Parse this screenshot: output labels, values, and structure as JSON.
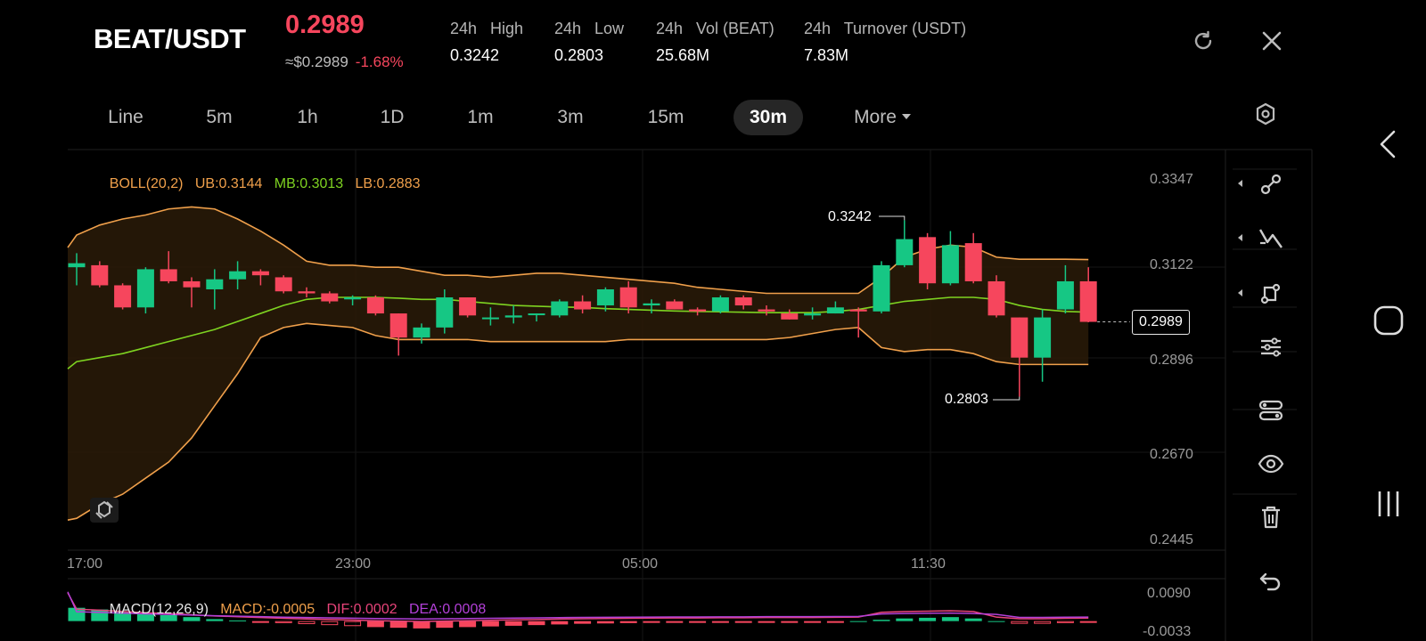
{
  "header": {
    "pair": "BEAT/USDT",
    "price": "0.2989",
    "price_usd": "≈$0.2989",
    "change": "-1.68%",
    "stats": [
      {
        "label": "24h   High",
        "value": "0.3242"
      },
      {
        "label": "24h   Low",
        "value": "0.2803"
      },
      {
        "label": "24h   Vol (BEAT)",
        "value": "25.68M"
      },
      {
        "label": "24h   Turnover (USDT)",
        "value": "7.83M"
      }
    ]
  },
  "tabs": [
    {
      "label": "Line",
      "active": false
    },
    {
      "label": "5m",
      "active": false
    },
    {
      "label": "1h",
      "active": false
    },
    {
      "label": "1D",
      "active": false
    },
    {
      "label": "1m",
      "active": false
    },
    {
      "label": "3m",
      "active": false
    },
    {
      "label": "15m",
      "active": false
    },
    {
      "label": "30m",
      "active": true
    },
    {
      "label": "More",
      "active": false
    }
  ],
  "boll_legend": {
    "name": "BOLL(20,2)",
    "ub": "UB:0.3144",
    "mb": "MB:0.3013",
    "lb": "LB:0.2883"
  },
  "macd_legend": {
    "name": "MACD(12,26,9)",
    "macd": "MACD:-0.0005",
    "dif": "DIF:0.0002",
    "dea": "DEA:0.0008"
  },
  "axis": {
    "price_ticks": [
      "0.3347",
      "0.3122",
      "0.2896",
      "0.2670",
      "0.2445"
    ],
    "time_ticks": [
      "17:00",
      "23:00",
      "05:00",
      "11:30"
    ],
    "macd_ticks": [
      "0.0090",
      "-0.0033"
    ]
  },
  "annotations": {
    "high_label": "0.3242",
    "low_label": "0.2803",
    "last_price_tag": "0.2989"
  },
  "colors": {
    "up": "#16c784",
    "down": "#f6465d",
    "ub": "#f0a04b",
    "mb": "#7ed321",
    "lb": "#f0a04b",
    "dif": "#e8447a",
    "dea": "#b340d8"
  },
  "icons": [
    "refresh-icon",
    "close-icon",
    "chart-settings-icon",
    "line-tool-icon",
    "trend-tool-icon",
    "shape-tool-icon",
    "indicator-settings-icon",
    "indicator-adjust-icon",
    "visibility-icon",
    "delete-icon",
    "undo-icon"
  ],
  "chart_data": {
    "type": "candlestick",
    "ylim": [
      0.2445,
      0.3347
    ],
    "candles": [
      {
        "o": 0.3125,
        "h": 0.316,
        "l": 0.308,
        "c": 0.3135
      },
      {
        "o": 0.313,
        "h": 0.314,
        "l": 0.3075,
        "c": 0.308
      },
      {
        "o": 0.308,
        "h": 0.3085,
        "l": 0.302,
        "c": 0.3025
      },
      {
        "o": 0.3025,
        "h": 0.3125,
        "l": 0.301,
        "c": 0.312
      },
      {
        "o": 0.312,
        "h": 0.3165,
        "l": 0.3085,
        "c": 0.309
      },
      {
        "o": 0.309,
        "h": 0.31,
        "l": 0.3025,
        "c": 0.3075
      },
      {
        "o": 0.307,
        "h": 0.312,
        "l": 0.302,
        "c": 0.3095
      },
      {
        "o": 0.3095,
        "h": 0.314,
        "l": 0.307,
        "c": 0.3115
      },
      {
        "o": 0.3115,
        "h": 0.312,
        "l": 0.308,
        "c": 0.3105
      },
      {
        "o": 0.31,
        "h": 0.3105,
        "l": 0.306,
        "c": 0.3065
      },
      {
        "o": 0.3065,
        "h": 0.3075,
        "l": 0.305,
        "c": 0.306
      },
      {
        "o": 0.306,
        "h": 0.3065,
        "l": 0.3035,
        "c": 0.304
      },
      {
        "o": 0.3045,
        "h": 0.3055,
        "l": 0.303,
        "c": 0.305
      },
      {
        "o": 0.305,
        "h": 0.3055,
        "l": 0.3005,
        "c": 0.301
      },
      {
        "o": 0.301,
        "h": 0.301,
        "l": 0.2905,
        "c": 0.295
      },
      {
        "o": 0.295,
        "h": 0.2985,
        "l": 0.2935,
        "c": 0.2975
      },
      {
        "o": 0.2975,
        "h": 0.307,
        "l": 0.296,
        "c": 0.305
      },
      {
        "o": 0.305,
        "h": 0.305,
        "l": 0.3,
        "c": 0.3005
      },
      {
        "o": 0.3,
        "h": 0.3025,
        "l": 0.298,
        "c": 0.3
      },
      {
        "o": 0.3,
        "h": 0.303,
        "l": 0.2985,
        "c": 0.3005
      },
      {
        "o": 0.301,
        "h": 0.301,
        "l": 0.299,
        "c": 0.301
      },
      {
        "o": 0.3005,
        "h": 0.3045,
        "l": 0.3,
        "c": 0.304
      },
      {
        "o": 0.304,
        "h": 0.3055,
        "l": 0.301,
        "c": 0.302
      },
      {
        "o": 0.303,
        "h": 0.3075,
        "l": 0.3015,
        "c": 0.307
      },
      {
        "o": 0.3075,
        "h": 0.309,
        "l": 0.301,
        "c": 0.3025
      },
      {
        "o": 0.303,
        "h": 0.3045,
        "l": 0.301,
        "c": 0.3035
      },
      {
        "o": 0.304,
        "h": 0.3045,
        "l": 0.302,
        "c": 0.302
      },
      {
        "o": 0.302,
        "h": 0.3025,
        "l": 0.3005,
        "c": 0.3015
      },
      {
        "o": 0.3015,
        "h": 0.3055,
        "l": 0.301,
        "c": 0.305
      },
      {
        "o": 0.305,
        "h": 0.3055,
        "l": 0.302,
        "c": 0.303
      },
      {
        "o": 0.302,
        "h": 0.303,
        "l": 0.3005,
        "c": 0.3015
      },
      {
        "o": 0.301,
        "h": 0.302,
        "l": 0.2995,
        "c": 0.2995
      },
      {
        "o": 0.3005,
        "h": 0.3025,
        "l": 0.2995,
        "c": 0.301
      },
      {
        "o": 0.301,
        "h": 0.304,
        "l": 0.301,
        "c": 0.3025
      },
      {
        "o": 0.302,
        "h": 0.3025,
        "l": 0.295,
        "c": 0.3015
      },
      {
        "o": 0.3015,
        "h": 0.314,
        "l": 0.301,
        "c": 0.313
      },
      {
        "o": 0.313,
        "h": 0.3242,
        "l": 0.3125,
        "c": 0.3195
      },
      {
        "o": 0.32,
        "h": 0.321,
        "l": 0.307,
        "c": 0.3085
      },
      {
        "o": 0.3085,
        "h": 0.3215,
        "l": 0.308,
        "c": 0.318
      },
      {
        "o": 0.3185,
        "h": 0.321,
        "l": 0.3085,
        "c": 0.309
      },
      {
        "o": 0.309,
        "h": 0.3105,
        "l": 0.3,
        "c": 0.3005
      },
      {
        "o": 0.3,
        "h": 0.3,
        "l": 0.2803,
        "c": 0.29
      },
      {
        "o": 0.29,
        "h": 0.302,
        "l": 0.284,
        "c": 0.3
      },
      {
        "o": 0.302,
        "h": 0.313,
        "l": 0.301,
        "c": 0.309
      },
      {
        "o": 0.309,
        "h": 0.3125,
        "l": 0.2988,
        "c": 0.2989
      }
    ],
    "ub": [
      0.3205,
      0.323,
      0.3245,
      0.3255,
      0.327,
      0.3275,
      0.327,
      0.3245,
      0.3215,
      0.318,
      0.314,
      0.313,
      0.313,
      0.3125,
      0.3125,
      0.3115,
      0.3105,
      0.3105,
      0.31,
      0.3105,
      0.311,
      0.311,
      0.3105,
      0.31,
      0.3095,
      0.309,
      0.3085,
      0.3075,
      0.307,
      0.3065,
      0.306,
      0.306,
      0.306,
      0.306,
      0.306,
      0.31,
      0.315,
      0.317,
      0.318,
      0.3175,
      0.315,
      0.3145,
      0.3145,
      0.3145,
      0.3144
    ],
    "mb": [
      0.289,
      0.29,
      0.291,
      0.2925,
      0.294,
      0.2955,
      0.297,
      0.299,
      0.301,
      0.303,
      0.3045,
      0.305,
      0.305,
      0.305,
      0.3048,
      0.3045,
      0.3045,
      0.304,
      0.3035,
      0.303,
      0.3028,
      0.3026,
      0.3025,
      0.3022,
      0.302,
      0.3018,
      0.3016,
      0.3015,
      0.3014,
      0.3013,
      0.3012,
      0.3012,
      0.3012,
      0.3015,
      0.302,
      0.303,
      0.304,
      0.3045,
      0.305,
      0.305,
      0.3045,
      0.303,
      0.302,
      0.3015,
      0.3013
    ],
    "lb": [
      0.25,
      0.2535,
      0.256,
      0.26,
      0.264,
      0.27,
      0.278,
      0.286,
      0.295,
      0.2975,
      0.2985,
      0.298,
      0.2975,
      0.2955,
      0.2945,
      0.2945,
      0.2945,
      0.2945,
      0.294,
      0.294,
      0.294,
      0.294,
      0.294,
      0.294,
      0.2945,
      0.2945,
      0.2945,
      0.2945,
      0.2945,
      0.2945,
      0.2945,
      0.295,
      0.296,
      0.297,
      0.2975,
      0.2925,
      0.2915,
      0.292,
      0.292,
      0.291,
      0.289,
      0.2883,
      0.2883,
      0.2883,
      0.2883
    ],
    "macd_hist": [
      0.004,
      0.0035,
      0.0028,
      0.0022,
      0.0018,
      0.0012,
      0.0006,
      0.0002,
      -0.0002,
      -0.0006,
      -0.0009,
      -0.0012,
      -0.0015,
      -0.0018,
      -0.002,
      -0.0022,
      -0.002,
      -0.0018,
      -0.0016,
      -0.0014,
      -0.0012,
      -0.001,
      -0.0008,
      -0.0007,
      -0.0006,
      -0.0005,
      -0.0004,
      -0.0004,
      -0.0003,
      -0.0003,
      -0.0002,
      -0.0002,
      -0.0002,
      -0.0001,
      0.0,
      0.0004,
      0.0008,
      0.001,
      0.0012,
      0.0008,
      0.0,
      -0.0008,
      -0.0008,
      -0.0006,
      -0.0005
    ],
    "macd_ylim": [
      -0.0033,
      0.009
    ]
  }
}
